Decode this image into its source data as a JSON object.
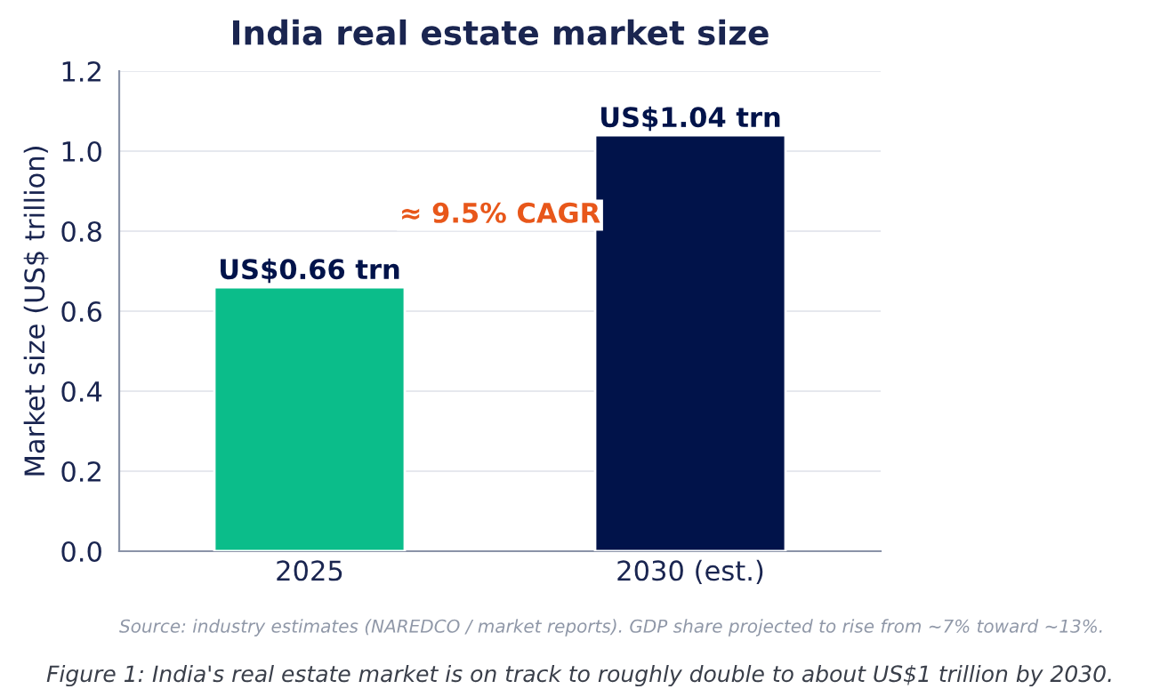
{
  "chart_data": {
    "type": "bar",
    "title": "India real estate market size",
    "ylabel": "Market size (US$ trillion)",
    "categories": [
      "2025",
      "2030 (est.)"
    ],
    "values": [
      0.66,
      1.04
    ],
    "colors": [
      "#0bbd8a",
      "#01134a"
    ],
    "value_labels": [
      "US$0.66 trn",
      "US$1.04 trn"
    ],
    "ylim": [
      0,
      1.2
    ],
    "yticks": [
      {
        "value": 0,
        "label": "0.0"
      },
      0.2,
      0.4,
      0.6,
      0.8,
      {
        "value": 1,
        "label": "1.0"
      },
      1.2
    ],
    "grid": "y",
    "annotations": [
      "≈ 9.5% CAGR",
      "Source: industry estimates (NAREDCO / market reports). GDP share projected to rise from ~7% toward ~13%.",
      "Figure 1: India's real estate market is on track to roughly double to about US$1 trillion by 2030."
    ]
  }
}
